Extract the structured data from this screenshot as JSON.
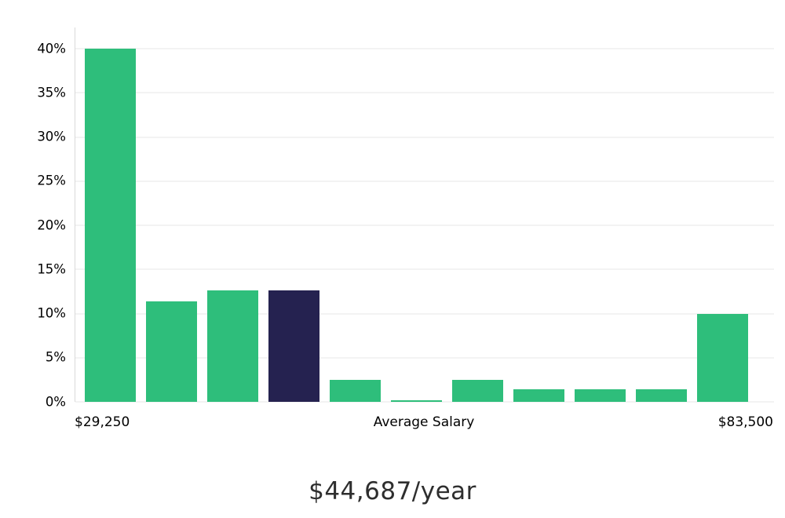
{
  "chart_data": {
    "type": "bar",
    "title": "$44,687/year",
    "x_axis": {
      "left_label": "$29,250",
      "center_label": "Average Salary",
      "right_label": "$83,500"
    },
    "ylim": [
      0,
      40
    ],
    "ytick_labels": [
      "0%",
      "5%",
      "10%",
      "15%",
      "20%",
      "25%",
      "30%",
      "35%",
      "40%"
    ],
    "ytick_values": [
      0,
      5,
      10,
      15,
      20,
      25,
      30,
      35,
      40
    ],
    "values": [
      40,
      11.4,
      12.6,
      12.6,
      2.5,
      0.2,
      2.5,
      1.4,
      1.4,
      1.4,
      10
    ],
    "highlight_index": 3,
    "legend": "none",
    "grid": "horizontal",
    "colors": {
      "bar": "#2ebe7b",
      "highlight": "#252250",
      "grid": "#e7e7e7",
      "axis": "#d9d9d9",
      "text": "#000000"
    }
  }
}
